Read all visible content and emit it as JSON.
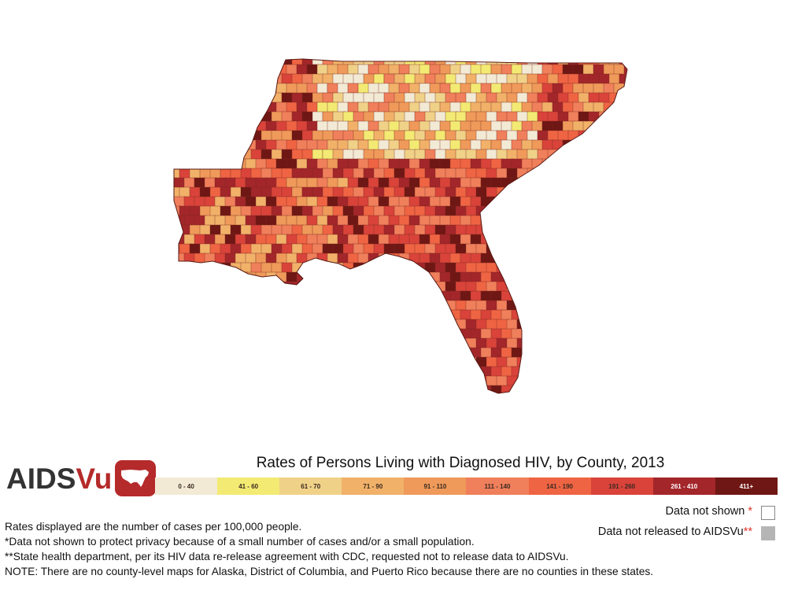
{
  "map": {
    "title": "Rates of Persons Living with Diagnosed HIV, by County, 2013",
    "region": "Southeastern United States counties",
    "colors": {
      "water": "#ffffff",
      "no_data": "#ffffff",
      "not_released": "#b5b5b5"
    }
  },
  "logo": {
    "text_aids": "AIDS",
    "text_vu": "Vu",
    "icon": "us-map-icon",
    "brand_color": "#b52a2a"
  },
  "legend": {
    "bins": [
      {
        "label": "0 - 40",
        "color": "#f2ead5"
      },
      {
        "label": "41 - 60",
        "color": "#f3ea73"
      },
      {
        "label": "61 - 70",
        "color": "#f0d188"
      },
      {
        "label": "71 - 90",
        "color": "#f1b169"
      },
      {
        "label": "91 - 110",
        "color": "#ef9a5a"
      },
      {
        "label": "111 - 140",
        "color": "#f07f5b"
      },
      {
        "label": "141 - 190",
        "color": "#ef6443"
      },
      {
        "label": "191 - 260",
        "color": "#d9433a"
      },
      {
        "label": "261 - 410",
        "color": "#a3262a"
      },
      {
        "label": "411+",
        "color": "#6f1714"
      }
    ],
    "data_not_shown": "Data not shown",
    "data_not_shown_mark": "*",
    "data_not_released": "Data not released to AIDSVu",
    "data_not_released_mark": "**"
  },
  "notes": {
    "line1": "Rates displayed are the number of cases per 100,000 people.",
    "line2": "*Data not shown to protect privacy because of a small number of cases and/or a small population.",
    "line3": "**State health department, per its HIV data re-release agreement with CDC, requested not to release data to AIDSVu.",
    "line4": "NOTE: There are no county-level maps for Alaska, District of Columbia, and Puerto Rico because there are no counties in these states."
  }
}
